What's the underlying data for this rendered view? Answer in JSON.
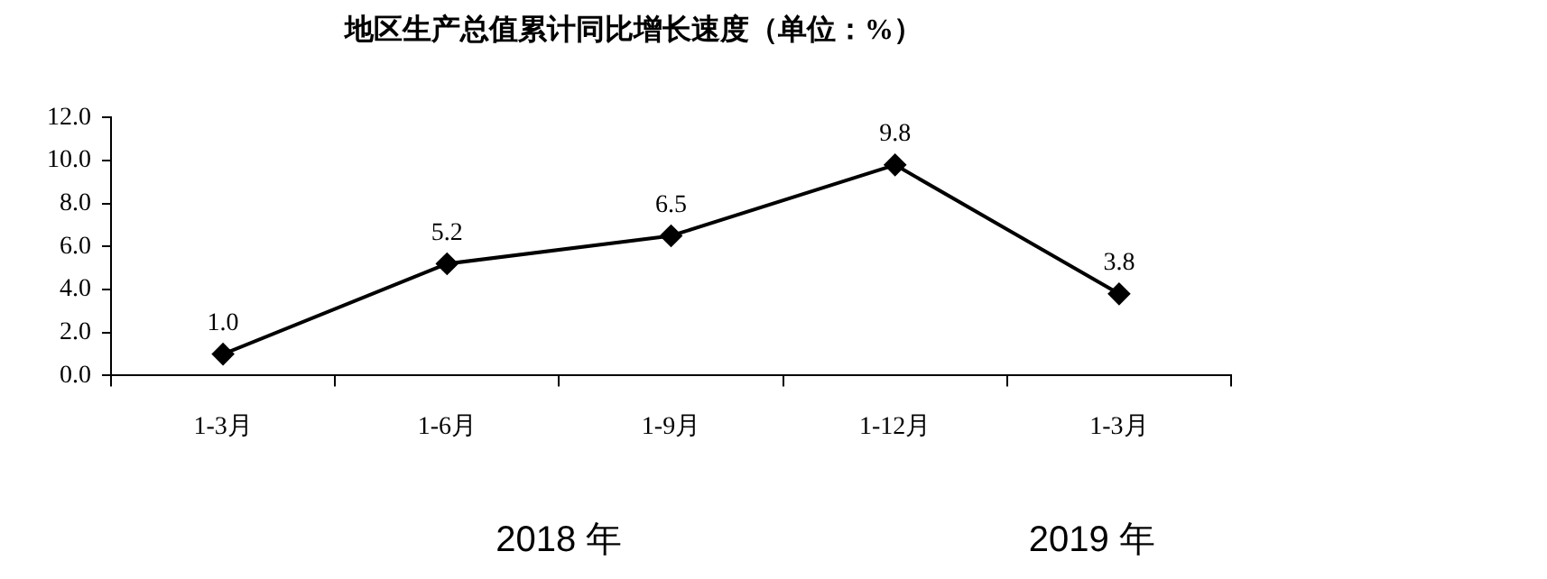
{
  "chart_data": {
    "type": "line",
    "title": "地区生产总值累计同比增长速度（单位：%）",
    "categories": [
      "1-3月",
      "1-6月",
      "1-9月",
      "1-12月",
      "1-3月"
    ],
    "series": [
      {
        "color": "#000000",
        "values": [
          1.0,
          5.2,
          6.5,
          9.8,
          3.8
        ],
        "value_labels": [
          "1.0",
          "5.2",
          "6.5",
          "9.8",
          "3.8"
        ]
      }
    ],
    "ylim": [
      0,
      12
    ],
    "yticks": [
      {
        "value": 0,
        "label": "0.0"
      },
      {
        "value": 2,
        "label": "2.0"
      },
      {
        "value": 4,
        "label": "4.0"
      },
      {
        "value": 6,
        "label": "6.0"
      },
      {
        "value": 8,
        "label": "8.0"
      },
      {
        "value": 10,
        "label": "10.0"
      },
      {
        "value": 12,
        "label": "12.0"
      }
    ],
    "grid": false,
    "legend": false,
    "marker": "diamond",
    "line_style": "solid",
    "annotations": [
      "2018 年",
      "2019 年"
    ]
  }
}
